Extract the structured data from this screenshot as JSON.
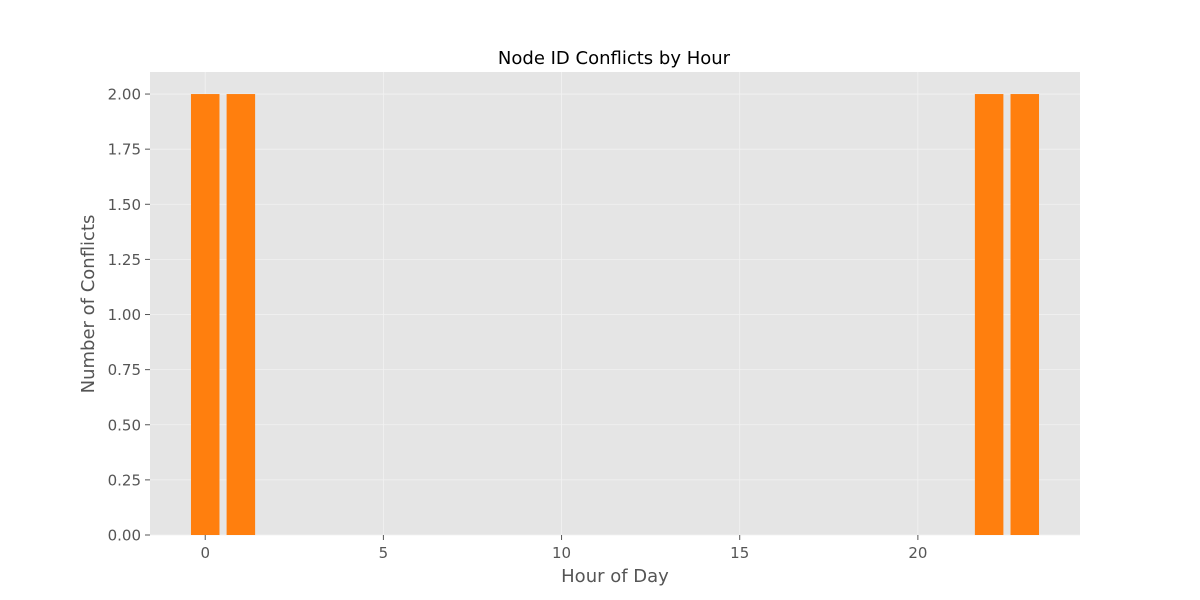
{
  "chart_data": {
    "type": "bar",
    "title": "Node ID Conflicts by Hour",
    "xlabel": "Hour of Day",
    "ylabel": "Number of Conflicts",
    "x": [
      0,
      1,
      22,
      23
    ],
    "values": [
      2,
      2,
      2,
      2
    ],
    "bar_width": 0.8,
    "xlim": [
      -1.55,
      24.55
    ],
    "ylim": [
      0,
      2.1
    ],
    "xticks": [
      0,
      5,
      10,
      15,
      20
    ],
    "yticks": [
      0.0,
      0.25,
      0.5,
      0.75,
      1.0,
      1.25,
      1.5,
      1.75,
      2.0
    ],
    "ytick_labels": [
      "0.00",
      "0.25",
      "0.50",
      "0.75",
      "1.00",
      "1.25",
      "1.50",
      "1.75",
      "2.00"
    ],
    "grid": true,
    "legend": "none",
    "colors": {
      "bar": "#ff7f0e",
      "plot_background": "#e5e5e5",
      "grid": "#f2f2f2",
      "tick": "#555555"
    }
  }
}
